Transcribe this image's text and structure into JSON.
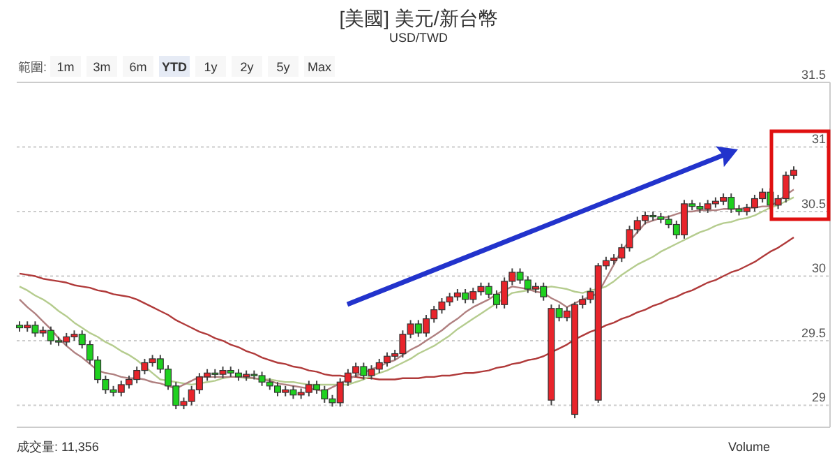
{
  "chart_data": {
    "type": "candlestick",
    "title": "[美國] 美元/新台幣",
    "subtitle": "USD/TWD",
    "annotations": [
      "範圍:",
      "1m",
      "3m",
      "6m",
      "YTD",
      "1y",
      "2y",
      "5y",
      "Max",
      "成交量: 11,356",
      "Volume"
    ],
    "categories": [
      null,
      null,
      null,
      null,
      null,
      null,
      null,
      null,
      null,
      null,
      null,
      null,
      null,
      null,
      null,
      null,
      null,
      null,
      null,
      null,
      null,
      null,
      null,
      null,
      null,
      null,
      null,
      null,
      null,
      null,
      null,
      null,
      null,
      null,
      null,
      null,
      null,
      null,
      null,
      null,
      null,
      null,
      null,
      null,
      null,
      null,
      null,
      null,
      null,
      null,
      null,
      null,
      null,
      null,
      null,
      null,
      null,
      null,
      null,
      null,
      null,
      null,
      null,
      null,
      null,
      null,
      null,
      null,
      null,
      null,
      null,
      null,
      null,
      null,
      null,
      null,
      null,
      null,
      null,
      null,
      null,
      null,
      null,
      null,
      null,
      null,
      null,
      null,
      null,
      null,
      null,
      null,
      null,
      null,
      null,
      null,
      null,
      null,
      null,
      null
    ],
    "ohlc": [
      [
        29.62,
        29.65,
        29.57,
        29.6
      ],
      [
        29.6,
        29.65,
        29.57,
        29.62
      ],
      [
        29.62,
        29.65,
        29.53,
        29.56
      ],
      [
        29.56,
        29.61,
        29.53,
        29.58
      ],
      [
        29.58,
        29.61,
        29.47,
        29.5
      ],
      [
        29.5,
        29.53,
        29.46,
        29.49
      ],
      [
        29.49,
        29.56,
        29.46,
        29.53
      ],
      [
        29.53,
        29.58,
        29.5,
        29.55
      ],
      [
        29.55,
        29.58,
        29.44,
        29.47
      ],
      [
        29.47,
        29.5,
        29.32,
        29.35
      ],
      [
        29.35,
        29.38,
        29.17,
        29.2
      ],
      [
        29.2,
        29.23,
        29.09,
        29.12
      ],
      [
        29.12,
        29.15,
        29.07,
        29.1
      ],
      [
        29.1,
        29.19,
        29.07,
        29.16
      ],
      [
        29.16,
        29.23,
        29.13,
        29.2
      ],
      [
        29.2,
        29.3,
        29.17,
        29.27
      ],
      [
        29.27,
        29.36,
        29.24,
        29.33
      ],
      [
        29.33,
        29.39,
        29.3,
        29.36
      ],
      [
        29.36,
        29.39,
        29.25,
        29.28
      ],
      [
        29.28,
        29.31,
        29.12,
        29.15
      ],
      [
        29.15,
        29.18,
        28.97,
        29.0
      ],
      [
        29.0,
        29.06,
        28.97,
        29.03
      ],
      [
        29.03,
        29.15,
        29.0,
        29.12
      ],
      [
        29.12,
        29.25,
        29.09,
        29.22
      ],
      [
        29.22,
        29.28,
        29.19,
        29.25
      ],
      [
        29.25,
        29.28,
        29.21,
        29.24
      ],
      [
        29.24,
        29.3,
        29.21,
        29.27
      ],
      [
        29.27,
        29.3,
        29.22,
        29.25
      ],
      [
        29.25,
        29.28,
        29.19,
        29.22
      ],
      [
        29.22,
        29.27,
        29.19,
        29.24
      ],
      [
        29.24,
        29.27,
        29.2,
        29.23
      ],
      [
        29.23,
        29.26,
        29.15,
        29.18
      ],
      [
        29.18,
        29.21,
        29.12,
        29.15
      ],
      [
        29.15,
        29.18,
        29.07,
        29.1
      ],
      [
        29.1,
        29.15,
        29.07,
        29.12
      ],
      [
        29.12,
        29.15,
        29.05,
        29.08
      ],
      [
        29.08,
        29.13,
        29.05,
        29.1
      ],
      [
        29.1,
        29.19,
        29.07,
        29.16
      ],
      [
        29.16,
        29.19,
        29.09,
        29.12
      ],
      [
        29.12,
        29.15,
        29.02,
        29.05
      ],
      [
        29.05,
        29.08,
        28.99,
        29.02
      ],
      [
        29.02,
        29.21,
        28.99,
        29.18
      ],
      [
        29.18,
        29.28,
        29.15,
        29.25
      ],
      [
        29.25,
        29.33,
        29.22,
        29.3
      ],
      [
        29.3,
        29.33,
        29.2,
        29.23
      ],
      [
        29.23,
        29.31,
        29.2,
        29.28
      ],
      [
        29.28,
        29.36,
        29.25,
        29.33
      ],
      [
        29.33,
        29.41,
        29.3,
        29.38
      ],
      [
        29.38,
        29.43,
        29.35,
        29.4
      ],
      [
        29.4,
        29.58,
        29.37,
        29.55
      ],
      [
        29.55,
        29.66,
        29.52,
        29.63
      ],
      [
        29.63,
        29.66,
        29.53,
        29.56
      ],
      [
        29.56,
        29.7,
        29.53,
        29.67
      ],
      [
        29.67,
        29.77,
        29.64,
        29.74
      ],
      [
        29.74,
        29.83,
        29.71,
        29.8
      ],
      [
        29.8,
        29.87,
        29.77,
        29.84
      ],
      [
        29.84,
        29.9,
        29.81,
        29.87
      ],
      [
        29.87,
        29.9,
        29.79,
        29.82
      ],
      [
        29.82,
        29.91,
        29.79,
        29.88
      ],
      [
        29.88,
        29.95,
        29.85,
        29.92
      ],
      [
        29.92,
        29.95,
        29.83,
        29.86
      ],
      [
        29.86,
        29.89,
        29.75,
        29.78
      ],
      [
        29.78,
        29.99,
        29.75,
        29.96
      ],
      [
        29.96,
        30.06,
        29.93,
        30.03
      ],
      [
        30.03,
        30.06,
        29.94,
        29.97
      ],
      [
        29.97,
        30.0,
        29.87,
        29.9
      ],
      [
        29.9,
        29.95,
        29.87,
        29.92
      ],
      [
        29.92,
        29.95,
        29.81,
        29.84
      ],
      [
        29.04,
        29.78,
        29.0,
        29.75
      ],
      [
        29.75,
        29.78,
        29.65,
        29.68
      ],
      [
        29.68,
        29.76,
        29.65,
        29.73
      ],
      [
        28.93,
        29.8,
        28.9,
        29.78
      ],
      [
        29.78,
        29.85,
        29.75,
        29.82
      ],
      [
        29.82,
        29.91,
        29.79,
        29.88
      ],
      [
        29.04,
        30.1,
        29.02,
        30.08
      ],
      [
        30.08,
        30.15,
        30.05,
        30.12
      ],
      [
        30.12,
        30.17,
        30.09,
        30.14
      ],
      [
        30.14,
        30.25,
        30.11,
        30.22
      ],
      [
        30.22,
        30.39,
        30.19,
        30.36
      ],
      [
        30.36,
        30.46,
        30.33,
        30.43
      ],
      [
        30.43,
        30.5,
        30.4,
        30.47
      ],
      [
        30.47,
        30.5,
        30.43,
        30.46
      ],
      [
        30.46,
        30.49,
        30.41,
        30.44
      ],
      [
        30.44,
        30.47,
        30.37,
        30.4
      ],
      [
        30.4,
        30.43,
        30.29,
        30.32
      ],
      [
        30.32,
        30.59,
        30.29,
        30.56
      ],
      [
        30.56,
        30.59,
        30.51,
        30.54
      ],
      [
        30.54,
        30.57,
        30.49,
        30.52
      ],
      [
        30.52,
        30.59,
        30.49,
        30.56
      ],
      [
        30.56,
        30.61,
        30.53,
        30.58
      ],
      [
        30.58,
        30.64,
        30.55,
        30.61
      ],
      [
        30.61,
        30.64,
        30.49,
        30.52
      ],
      [
        30.52,
        30.55,
        30.47,
        30.5
      ],
      [
        30.5,
        30.56,
        30.47,
        30.53
      ],
      [
        30.53,
        30.63,
        30.5,
        30.6
      ],
      [
        30.6,
        30.68,
        30.57,
        30.65
      ],
      [
        30.65,
        30.68,
        30.52,
        30.55
      ],
      [
        30.55,
        30.63,
        30.52,
        30.6
      ],
      [
        30.6,
        30.81,
        30.57,
        30.78
      ],
      [
        30.78,
        30.85,
        30.75,
        30.82
      ]
    ],
    "series": [
      {
        "type": "line",
        "color": "#b03a3a",
        "values": [
          30.02,
          30.01,
          30.0,
          29.98,
          29.97,
          29.96,
          29.95,
          29.93,
          29.92,
          29.91,
          29.89,
          29.88,
          29.86,
          29.85,
          29.84,
          29.82,
          29.79,
          29.76,
          29.73,
          29.7,
          29.66,
          29.63,
          29.6,
          29.57,
          29.55,
          29.52,
          29.5,
          29.47,
          29.45,
          29.42,
          29.4,
          29.37,
          29.35,
          29.33,
          29.32,
          29.3,
          29.29,
          29.27,
          29.26,
          29.24,
          29.23,
          29.23,
          29.22,
          29.22,
          29.21,
          29.21,
          29.2,
          29.2,
          29.2,
          29.21,
          29.21,
          29.21,
          29.22,
          29.22,
          29.23,
          29.23,
          29.24,
          29.25,
          29.25,
          29.26,
          29.27,
          29.29,
          29.3,
          29.32,
          29.33,
          29.35,
          29.36,
          29.38,
          29.41,
          29.44,
          29.47,
          29.51,
          29.54,
          29.57,
          29.59,
          29.62,
          29.64,
          29.67,
          29.69,
          29.72,
          29.74,
          29.77,
          29.79,
          29.82,
          29.84,
          29.87,
          29.89,
          29.92,
          29.95,
          29.97,
          30.0,
          30.03,
          30.05,
          30.08,
          30.11,
          30.15,
          30.19,
          30.22,
          30.26,
          30.3
        ]
      },
      {
        "type": "line",
        "color": "#b5cc8e",
        "values": [
          29.92,
          29.89,
          29.85,
          29.82,
          29.78,
          29.73,
          29.69,
          29.64,
          29.6,
          29.56,
          29.53,
          29.49,
          29.46,
          29.42,
          29.39,
          29.35,
          29.3,
          29.25,
          29.2,
          29.19,
          29.18,
          29.17,
          29.16,
          29.17,
          29.18,
          29.19,
          29.21,
          29.22,
          29.22,
          29.21,
          29.21,
          29.2,
          29.2,
          29.19,
          29.18,
          29.18,
          29.17,
          29.16,
          29.16,
          29.16,
          29.16,
          29.16,
          29.16,
          29.18,
          29.2,
          29.23,
          29.25,
          29.27,
          29.3,
          29.33,
          29.36,
          29.4,
          29.43,
          29.46,
          29.5,
          29.54,
          29.59,
          29.63,
          29.67,
          29.71,
          29.75,
          29.79,
          29.83,
          29.87,
          29.88,
          29.89,
          29.9,
          29.91,
          29.92,
          29.91,
          29.9,
          29.88,
          29.87,
          29.89,
          29.9,
          29.92,
          29.96,
          30.01,
          30.05,
          30.09,
          30.12,
          30.15,
          30.19,
          30.22,
          30.25,
          30.28,
          30.31,
          30.34,
          30.36,
          30.39,
          30.41,
          30.42,
          30.44,
          30.45,
          30.47,
          30.5,
          30.53,
          30.55,
          30.58,
          30.61
        ]
      },
      {
        "type": "line",
        "color": "#b08080",
        "values": [
          29.82,
          29.76,
          29.71,
          29.65,
          29.59,
          29.52,
          29.46,
          29.41,
          29.37,
          29.32,
          29.27,
          29.25,
          29.24,
          29.22,
          29.21,
          29.21,
          29.2,
          29.18,
          29.17,
          29.15,
          29.13,
          29.16,
          29.19,
          29.22,
          29.22,
          29.22,
          29.22,
          29.22,
          29.22,
          29.22,
          29.21,
          29.2,
          29.19,
          29.17,
          29.16,
          29.15,
          29.14,
          29.13,
          29.12,
          29.11,
          29.14,
          29.17,
          29.2,
          29.23,
          29.25,
          29.28,
          29.3,
          29.33,
          29.35,
          29.39,
          29.43,
          29.46,
          29.5,
          29.54,
          29.58,
          29.63,
          29.67,
          29.72,
          29.76,
          29.79,
          29.82,
          29.86,
          29.89,
          29.92,
          29.91,
          29.9,
          29.88,
          29.87,
          29.83,
          29.8,
          29.76,
          29.79,
          29.82,
          29.84,
          29.87,
          29.98,
          30.09,
          30.2,
          30.27,
          30.34,
          30.41,
          30.43,
          30.45,
          30.46,
          30.48,
          30.5,
          30.5,
          30.51,
          30.51,
          30.51,
          30.52,
          30.52,
          30.52,
          30.53,
          30.53,
          30.54,
          30.54,
          30.58,
          30.63,
          30.67
        ]
      }
    ],
    "ylim": [
      28.83,
      31.5
    ],
    "yticks": [
      29,
      29.5,
      30,
      30.5,
      31,
      31.5
    ],
    "grid": "y",
    "tick_labels": "y"
  }
}
